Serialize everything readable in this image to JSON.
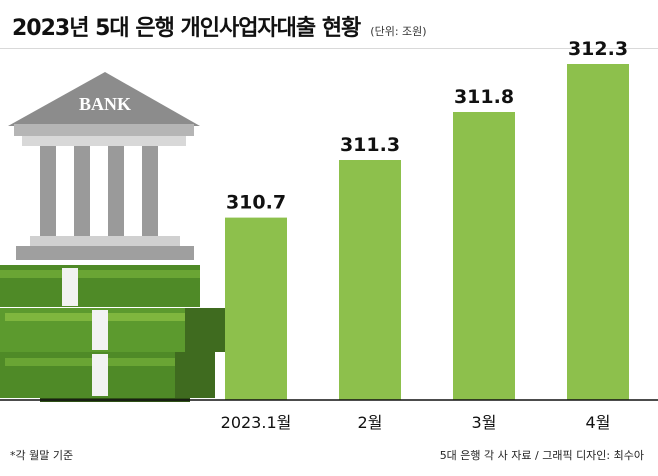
{
  "title": "2023년 5대 은행 개인사업자대출 현황",
  "unit": "(단위: 조원)",
  "footnote": "*각 월말 기준",
  "source": "5대 은행 각 사 자료 / 그래픽 디자인: 최수아",
  "illustration_label": "BANK",
  "colors": {
    "bar": "#8dc04c",
    "cash_dark": "#3f6b1f",
    "cash_light": "#7fb63e",
    "bank": "#8c8c8c"
  },
  "chart_data": {
    "type": "bar",
    "categories": [
      "2023.1월",
      "2월",
      "3월",
      "4월"
    ],
    "values": [
      310.7,
      311.3,
      311.8,
      312.3
    ],
    "value_labels": [
      "310.7",
      "311.3",
      "311.8",
      "312.3"
    ],
    "title": "2023년 5대 은행 개인사업자대출 현황",
    "ylabel": "",
    "xlabel": "",
    "unit": "조원",
    "grid": false
  }
}
